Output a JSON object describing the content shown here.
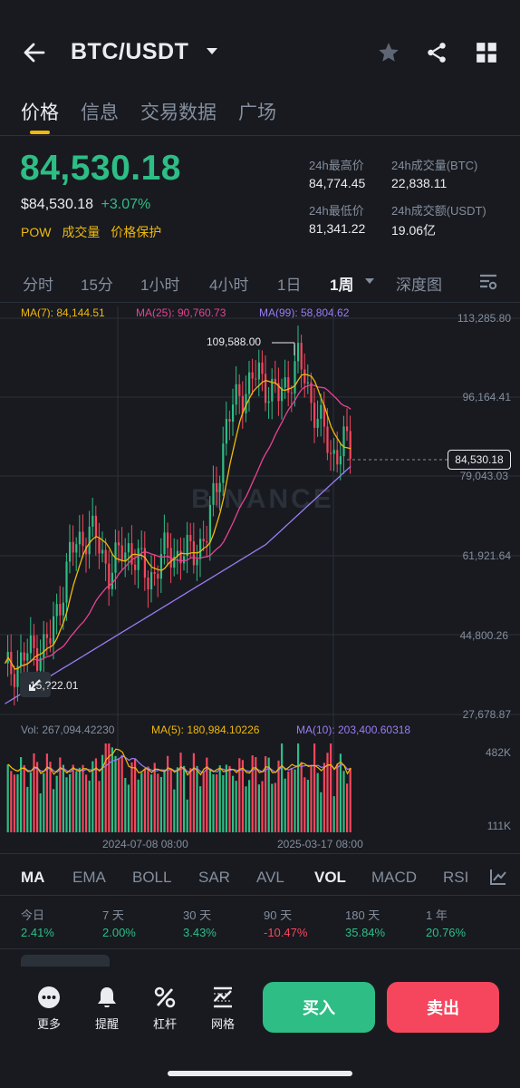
{
  "header": {
    "pair": "BTC/USDT",
    "back_icon": "arrow-left-icon",
    "dropdown_icon": "caret-down-icon",
    "favorite_icon": "star-icon",
    "share_icon": "share-icon",
    "grid_icon": "grid-icon"
  },
  "tabs": [
    "价格",
    "信息",
    "交易数据",
    "广场"
  ],
  "active_tab": "价格",
  "price": {
    "last": "84,530.18",
    "usd": "$84,530.18",
    "change": "+3.07%",
    "tags": [
      "POW",
      "成交量",
      "价格保护"
    ]
  },
  "stats": {
    "high_label": "24h最高价",
    "high": "84,774.45",
    "low_label": "24h最低价",
    "low": "81,341.22",
    "vol_btc_label": "24h成交量(BTC)",
    "vol_btc": "22,838.11",
    "vol_usdt_label": "24h成交额(USDT)",
    "vol_usdt": "19.06亿"
  },
  "intervals": [
    "分时",
    "15分",
    "1小时",
    "4小时",
    "1日",
    "1周",
    "深度图"
  ],
  "active_interval": "1周",
  "ma_legend": {
    "ma7": "MA(7): 84,144.51",
    "ma25": "MA(25): 90,760.73",
    "ma99": "MA(99): 58,804.62"
  },
  "chart_data": {
    "type": "candlestick",
    "y_axis": [
      "113,285.80",
      "96,164.41",
      "79,043.03",
      "61,921.64",
      "44,800.26",
      "27,678.87"
    ],
    "ylim": [
      27678.87,
      113285.8
    ],
    "max_label": "109,588.00",
    "min_label": "15,?22.01",
    "current_price_tag": "84,530.18",
    "x_labels": [
      "2024-07-08 08:00",
      "2025-03-17 08:00"
    ],
    "watermark": "BINANCE",
    "series": [
      {
        "name": "MA(7)",
        "color": "#f0b90b"
      },
      {
        "name": "MA(25)",
        "color": "#e84393"
      },
      {
        "name": "MA(99)",
        "color": "#9c7cf4"
      }
    ],
    "volume": {
      "legend_vol": "Vol: 267,094.42230",
      "legend_ma5": "MA(5): 180,984.10226",
      "legend_ma10": "MA(10): 203,400.60318",
      "y_max": "482K",
      "y_min": "111K"
    }
  },
  "indicators": [
    "MA",
    "EMA",
    "BOLL",
    "SAR",
    "AVL",
    "VOL",
    "MACD",
    "RSI"
  ],
  "active_main_indicator": "MA",
  "active_sub_indicator": "VOL",
  "periods": [
    {
      "label": "今日",
      "value": "2.41%",
      "color": "#2ebd85"
    },
    {
      "label": "7 天",
      "value": "2.00%",
      "color": "#2ebd85"
    },
    {
      "label": "30 天",
      "value": "3.43%",
      "color": "#2ebd85"
    },
    {
      "label": "90 天",
      "value": "-10.47%",
      "color": "#f6465d"
    },
    {
      "label": "180 天",
      "value": "35.84%",
      "color": "#2ebd85"
    },
    {
      "label": "1 年",
      "value": "20.76%",
      "color": "#2ebd85"
    }
  ],
  "bottom_bar": {
    "more": "更多",
    "alert": "提醒",
    "leverage": "杠杆",
    "grid": "网格",
    "buy": "买入",
    "sell": "卖出"
  },
  "colors": {
    "up": "#2ebd85",
    "down": "#f6465d",
    "accent": "#f0b90b",
    "bg": "#181a20"
  }
}
